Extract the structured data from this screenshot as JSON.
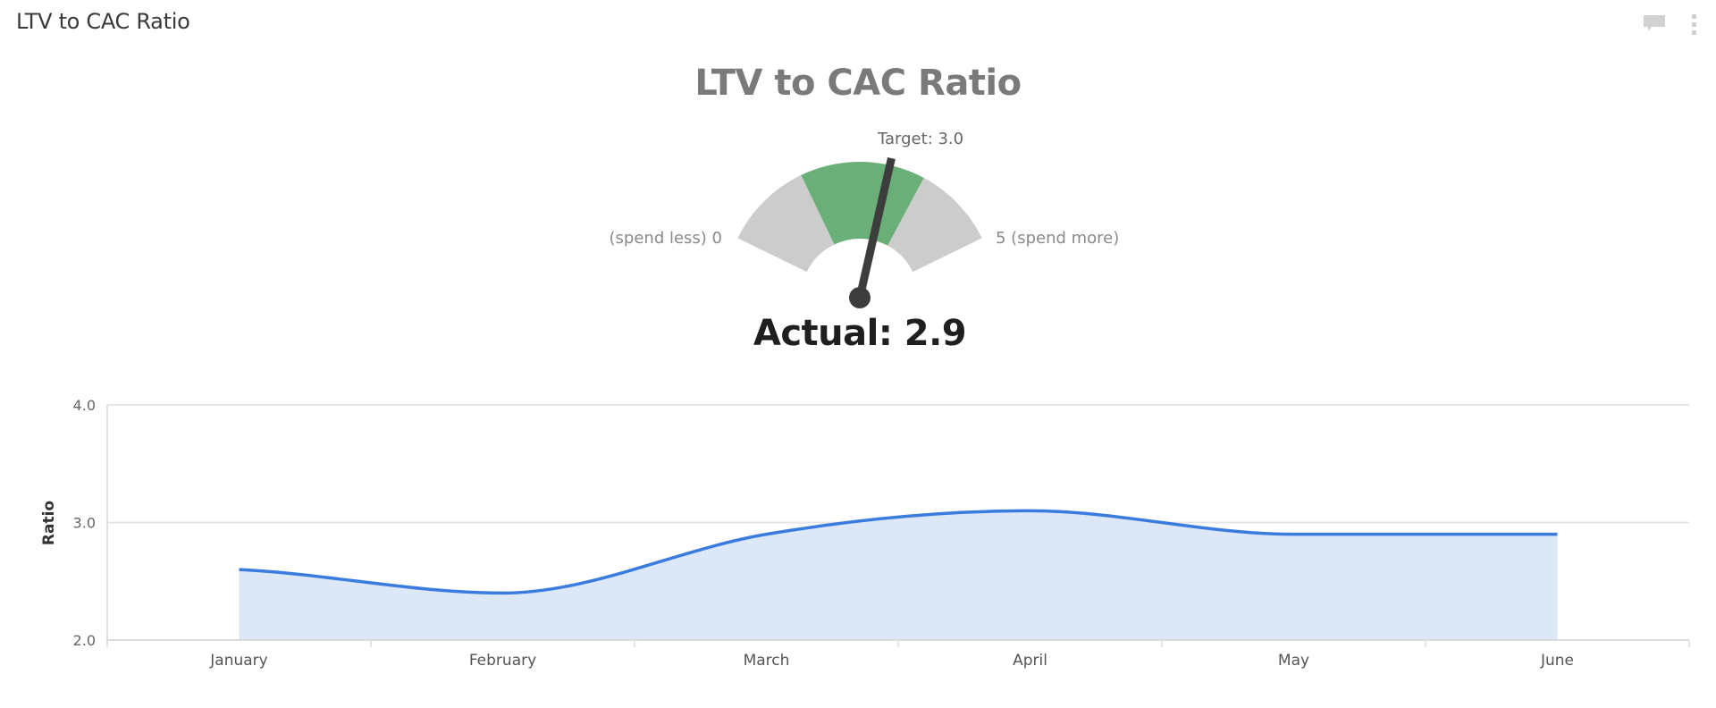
{
  "widget": {
    "title": "LTV to CAC Ratio",
    "icons": [
      "comment-icon",
      "more-vertical-icon"
    ]
  },
  "gauge": {
    "title": "LTV to CAC Ratio",
    "min": 0,
    "max": 5,
    "min_label": "(spend less) 0",
    "max_label": "5 (spend more)",
    "target": 3.0,
    "target_label": "Target: 3.0",
    "actual": 2.9,
    "actual_label": "Actual: 2.9",
    "bands": [
      {
        "from": 0,
        "to": 1.5,
        "color": "#cccccc"
      },
      {
        "from": 1.5,
        "to": 3.6,
        "color": "#6aaf78"
      },
      {
        "from": 3.6,
        "to": 5,
        "color": "#cccccc"
      }
    ],
    "needle_color": "#3d3d3d"
  },
  "chart_data": {
    "type": "area",
    "title": "",
    "xlabel": "",
    "ylabel": "Ratio",
    "categories": [
      "January",
      "February",
      "March",
      "April",
      "May",
      "June"
    ],
    "series": [
      {
        "name": "LTV to CAC Ratio",
        "values": [
          2.6,
          2.4,
          2.9,
          3.1,
          2.9,
          2.9
        ],
        "color": "#3a7be0",
        "fill": "#dce7f8"
      }
    ],
    "ylim": [
      2.0,
      4.0
    ],
    "yticks": [
      "2.0",
      "3.0",
      "4.0"
    ],
    "grid": true,
    "legend": "none"
  }
}
